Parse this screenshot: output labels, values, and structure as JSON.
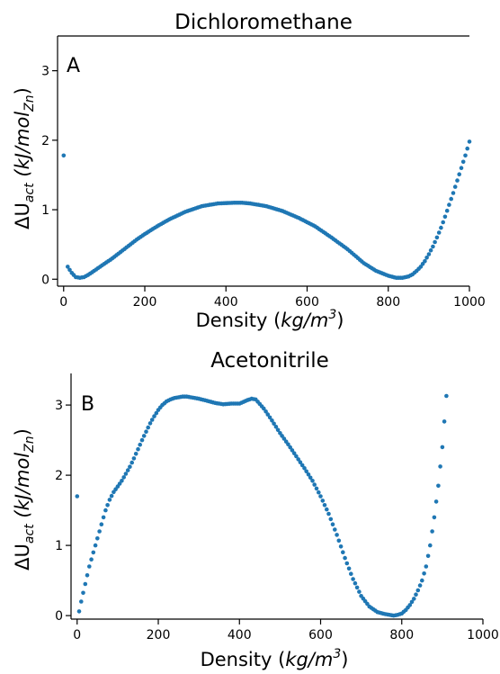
{
  "chart_data": [
    {
      "type": "scatter",
      "panel": "A",
      "title": "Dichloromethane",
      "xlabel": {
        "prefix": "Density (",
        "italic": "kg/m",
        "sup": "3",
        "suffix": ")"
      },
      "ylabel": {
        "prefix": "ΔU",
        "sub": "act",
        "mid": " (kJ/mol",
        "sub2": "Zn",
        "suffix": ")"
      },
      "xlim": [
        -15,
        1000
      ],
      "ylim": [
        -0.1,
        3.5
      ],
      "xticks": [
        0,
        200,
        400,
        600,
        800,
        1000
      ],
      "yticks": [
        0,
        1,
        2,
        3
      ],
      "color": "#1f77b4",
      "curve_x": [
        0,
        10,
        20,
        30,
        40,
        50,
        60,
        70,
        80,
        100,
        120,
        140,
        160,
        180,
        200,
        230,
        260,
        300,
        340,
        380,
        420,
        440,
        460,
        500,
        540,
        580,
        620,
        660,
        700,
        740,
        770,
        800,
        820,
        835,
        850,
        860,
        870,
        880,
        890,
        900,
        910,
        920,
        930,
        940,
        950,
        960,
        970,
        980,
        990,
        1000
      ],
      "curve_y": [
        1.78,
        0.18,
        0.09,
        0.03,
        0.02,
        0.03,
        0.06,
        0.1,
        0.14,
        0.22,
        0.3,
        0.39,
        0.48,
        0.57,
        0.65,
        0.76,
        0.86,
        0.97,
        1.05,
        1.09,
        1.1,
        1.1,
        1.09,
        1.05,
        0.98,
        0.88,
        0.76,
        0.6,
        0.43,
        0.23,
        0.12,
        0.05,
        0.02,
        0.02,
        0.04,
        0.07,
        0.12,
        0.18,
        0.26,
        0.36,
        0.47,
        0.6,
        0.74,
        0.9,
        1.07,
        1.24,
        1.42,
        1.6,
        1.78,
        1.98
      ]
    },
    {
      "type": "scatter",
      "panel": "B",
      "title": "Acetonitrile",
      "xlabel": {
        "prefix": "Density (",
        "italic": "kg/m",
        "sup": "3",
        "suffix": ")"
      },
      "ylabel": {
        "prefix": "ΔU",
        "sub": "act",
        "mid": " (kJ/mol",
        "sub2": "Zn",
        "suffix": ")"
      },
      "xlim": [
        -15,
        1000
      ],
      "ylim": [
        -0.05,
        3.45
      ],
      "xticks": [
        0,
        200,
        400,
        600,
        800,
        1000
      ],
      "yticks": [
        0,
        1,
        2,
        3
      ],
      "color": "#1f77b4",
      "curve_x": [
        0,
        5,
        10,
        20,
        30,
        40,
        50,
        60,
        70,
        80,
        90,
        100,
        110,
        120,
        130,
        140,
        150,
        160,
        170,
        180,
        190,
        200,
        210,
        220,
        230,
        240,
        250,
        260,
        270,
        280,
        290,
        300,
        320,
        340,
        360,
        380,
        400,
        420,
        430,
        440,
        460,
        480,
        500,
        520,
        540,
        560,
        580,
        600,
        620,
        640,
        660,
        680,
        700,
        720,
        740,
        760,
        770,
        780,
        790,
        800,
        810,
        820,
        830,
        840,
        850,
        860,
        870,
        880,
        890,
        900,
        910
      ],
      "curve_y": [
        1.7,
        0.06,
        0.2,
        0.45,
        0.7,
        0.9,
        1.1,
        1.3,
        1.5,
        1.65,
        1.76,
        1.84,
        1.92,
        2.02,
        2.12,
        2.24,
        2.37,
        2.5,
        2.62,
        2.74,
        2.84,
        2.93,
        3.0,
        3.05,
        3.08,
        3.1,
        3.11,
        3.12,
        3.12,
        3.11,
        3.1,
        3.09,
        3.06,
        3.03,
        3.01,
        3.02,
        3.02,
        3.07,
        3.09,
        3.08,
        2.95,
        2.78,
        2.6,
        2.44,
        2.27,
        2.1,
        1.92,
        1.7,
        1.45,
        1.15,
        0.82,
        0.52,
        0.28,
        0.13,
        0.05,
        0.02,
        0.01,
        0.0,
        0.01,
        0.03,
        0.08,
        0.15,
        0.24,
        0.36,
        0.5,
        0.7,
        1.0,
        1.4,
        1.85,
        2.4,
        3.13
      ]
    }
  ]
}
